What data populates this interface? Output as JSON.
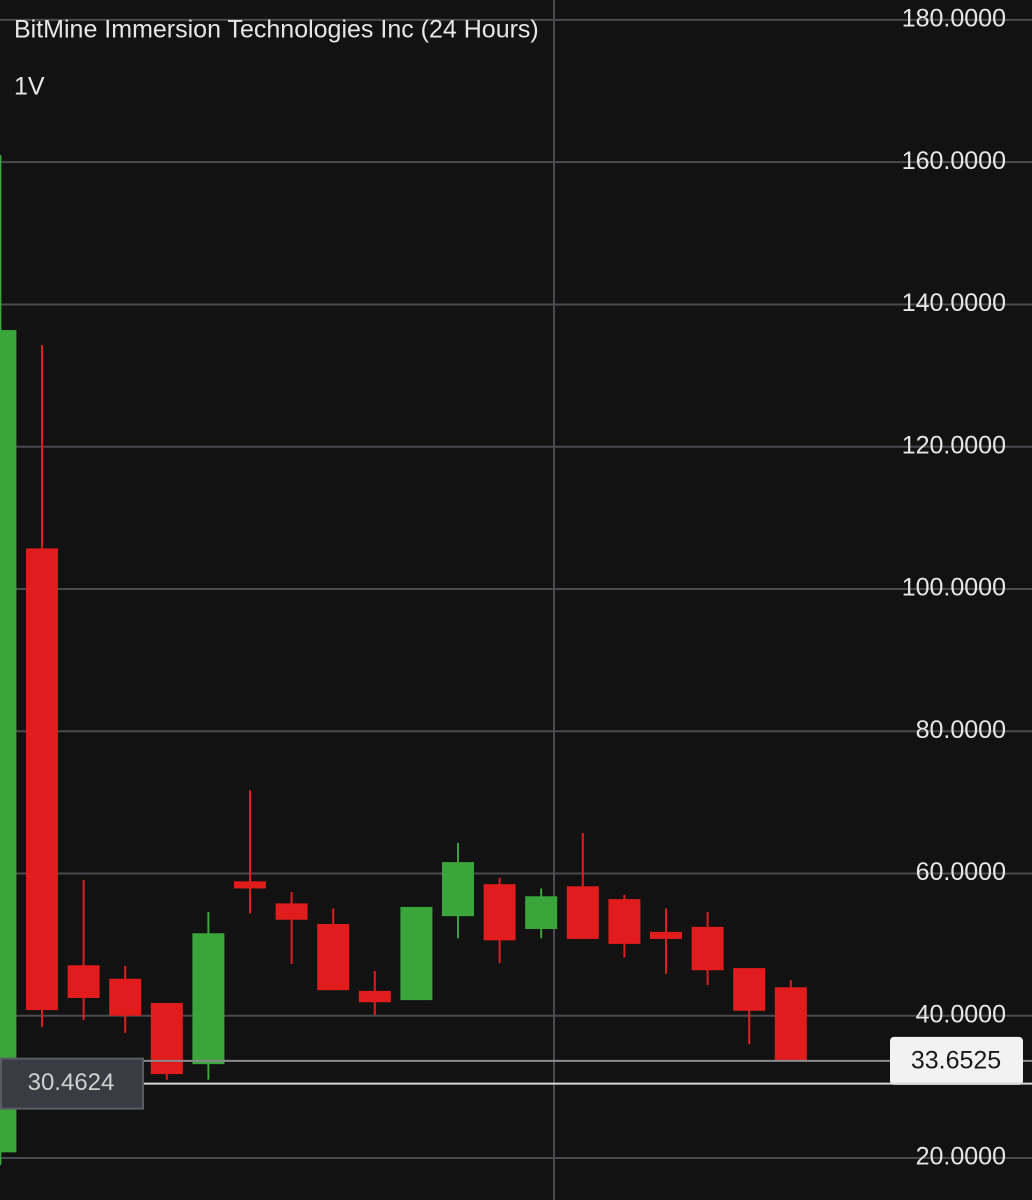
{
  "chart_data": {
    "type": "candlestick",
    "title": "BitMine Immersion Technologies Inc (24 Hours)",
    "subtitle": "1V",
    "up_color": "#3aa53a",
    "down_color": "#e01c1c",
    "open": [
      20.8,
      105.7,
      47.1,
      45.2,
      41.8,
      33.2,
      58.9,
      55.8,
      52.9,
      43.5,
      42.2,
      54.0,
      58.5,
      52.2,
      58.2,
      56.4,
      51.8,
      52.5,
      46.7,
      44.0
    ],
    "high": [
      161.0,
      134.3,
      59.1,
      47.0,
      41.8,
      54.6,
      71.7,
      57.4,
      55.1,
      46.3,
      55.3,
      64.3,
      59.4,
      57.9,
      65.7,
      57.0,
      55.1,
      54.6,
      46.7,
      45.0
    ],
    "low": [
      19.0,
      38.4,
      39.4,
      37.6,
      31.0,
      31.0,
      54.4,
      47.3,
      43.6,
      40.1,
      42.2,
      50.9,
      47.4,
      50.9,
      50.8,
      48.2,
      45.9,
      44.3,
      36.0,
      33.6525
    ],
    "close": [
      136.4,
      40.8,
      42.5,
      40.0,
      31.8,
      51.6,
      57.9,
      53.5,
      43.6,
      41.9,
      55.3,
      61.6,
      50.6,
      56.8,
      50.8,
      50.1,
      50.8,
      46.4,
      40.7,
      33.6525
    ],
    "ylim": [
      14.1,
      182.8
    ],
    "yticks": [
      {
        "value": 20,
        "label": "20.0000"
      },
      {
        "value": 40,
        "label": "40.0000"
      },
      {
        "value": 60,
        "label": "60.0000"
      },
      {
        "value": 80,
        "label": "80.0000"
      },
      {
        "value": 100,
        "label": "100.0000"
      },
      {
        "value": 120,
        "label": "120.0000"
      },
      {
        "value": 140,
        "label": "140.0000"
      },
      {
        "value": 160,
        "label": "160.0000"
      },
      {
        "value": 180,
        "label": "180.0000"
      }
    ],
    "last_price": 33.6525,
    "crosshair_price": 30.4624,
    "grid": true
  }
}
